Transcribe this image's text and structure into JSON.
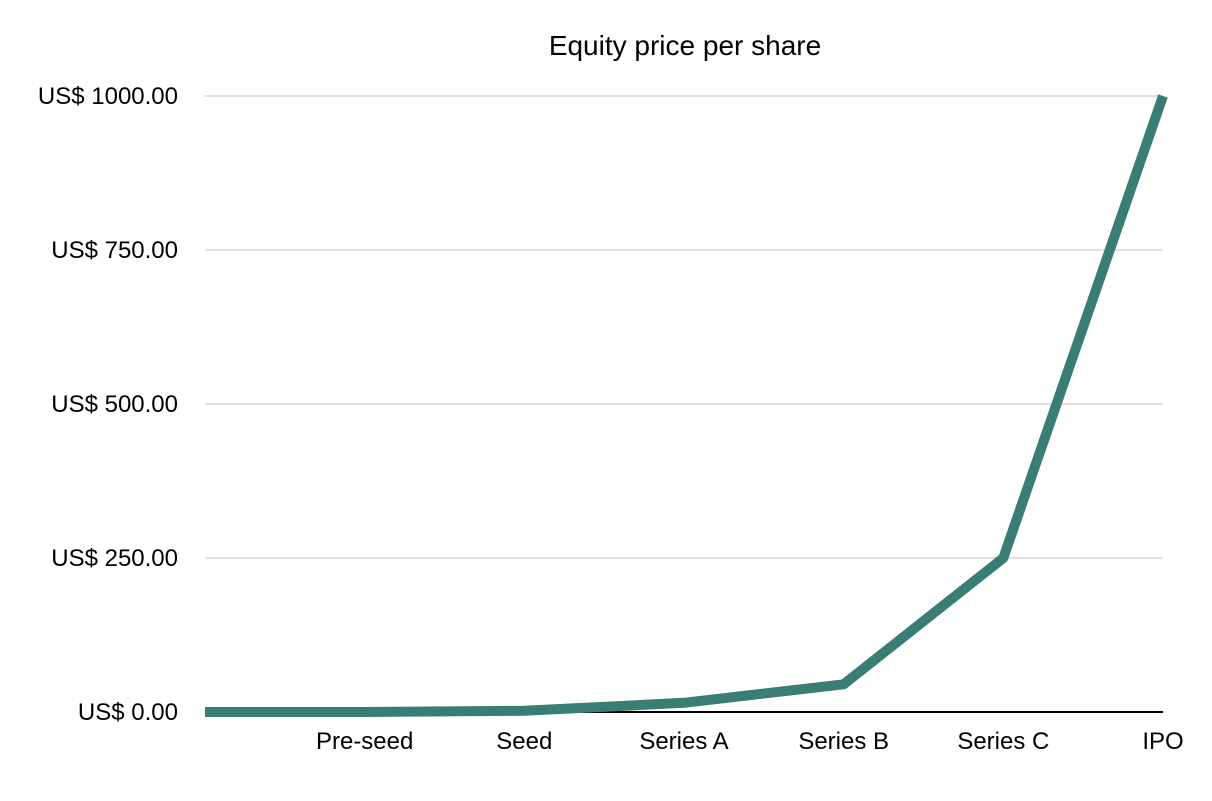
{
  "chart_data": {
    "type": "line",
    "title": "Equity price per share",
    "xlabel": "",
    "ylabel": "",
    "categories": [
      "",
      "Pre-seed",
      "Seed",
      "Series A",
      "Series B",
      "Series C",
      "IPO"
    ],
    "series": [
      {
        "values": [
          0,
          0,
          2,
          15,
          45,
          250,
          1000
        ],
        "color": "#3a7d75"
      }
    ],
    "y_ticks": [
      0,
      250,
      500,
      750,
      1000
    ],
    "y_tick_labels": [
      "US$ 0.00",
      "US$ 250.00",
      "US$ 500.00",
      "US$ 750.00",
      "US$ 1000.00"
    ],
    "ylim": [
      0,
      1000
    ],
    "grid": true,
    "legend": "none",
    "gridline_color": "#c0c0c0",
    "axis_color": "#000000"
  }
}
